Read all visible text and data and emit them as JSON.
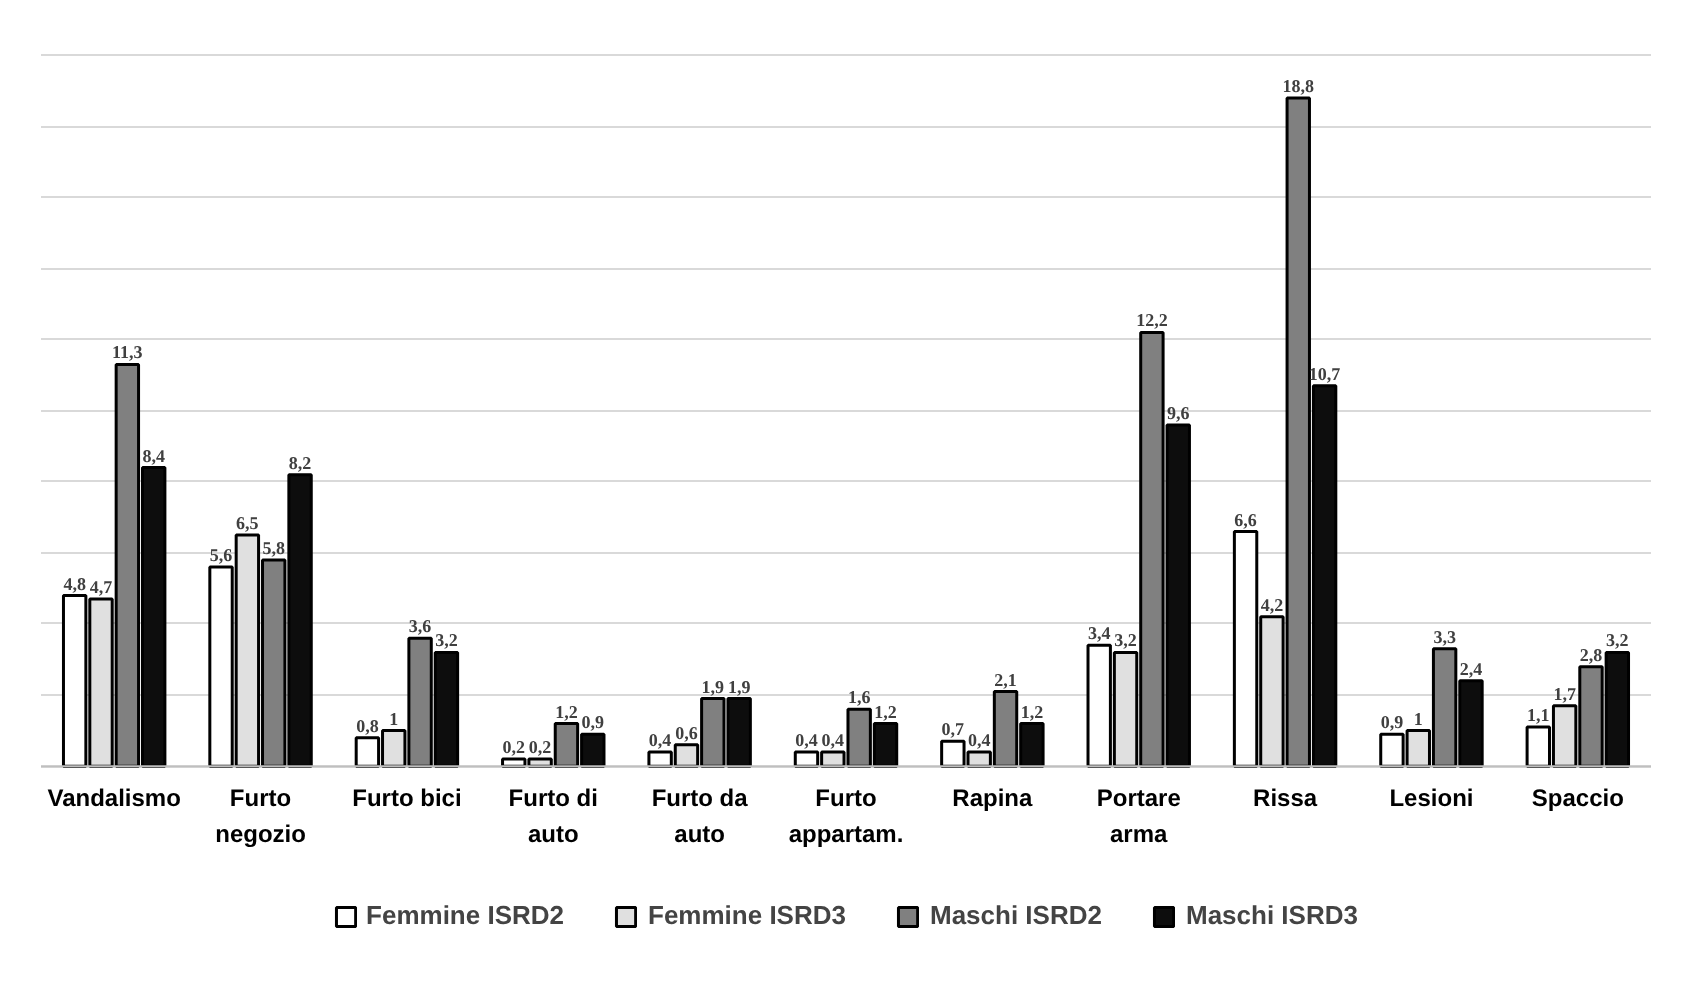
{
  "chart_data": {
    "type": "bar",
    "categories": [
      "Vandalismo",
      "Furto negozio",
      "Furto bici",
      "Furto di auto",
      "Furto da auto",
      "Furto appartam.",
      "Rapina",
      "Portare arma",
      "Rissa",
      "Lesioni",
      "Spaccio"
    ],
    "series": [
      {
        "name": "Femmine ISRD2",
        "color": "#ffffff",
        "values": [
          4.8,
          5.6,
          0.8,
          0.2,
          0.4,
          0.4,
          0.7,
          3.4,
          6.6,
          0.9,
          1.1
        ],
        "value_labels": [
          "4,8",
          "5,6",
          "0,8",
          "0,2",
          "0,4",
          "0,4",
          "0,7",
          "3,4",
          "6,6",
          "0,9",
          "1,1"
        ]
      },
      {
        "name": "Femmine ISRD3",
        "color": "#e0e0e0",
        "values": [
          4.7,
          6.5,
          1,
          0.2,
          0.6,
          0.4,
          0.4,
          3.2,
          4.2,
          1,
          1.7
        ],
        "value_labels": [
          "4,7",
          "6,5",
          "1",
          "0,2",
          "0,6",
          "0,4",
          "0,4",
          "3,2",
          "4,2",
          "1",
          "1,7"
        ]
      },
      {
        "name": "Maschi ISRD2",
        "color": "#808080",
        "values": [
          11.3,
          5.8,
          3.6,
          1.2,
          1.9,
          1.6,
          2.1,
          12.2,
          18.8,
          3.3,
          2.8
        ],
        "value_labels": [
          "11,3",
          "5,8",
          "3,6",
          "1,2",
          "1,9",
          "1,6",
          "2,1",
          "12,2",
          "18,8",
          "3,3",
          "2,8"
        ]
      },
      {
        "name": "Maschi ISRD3",
        "color": "#0d0d0d",
        "values": [
          8.4,
          8.2,
          3.2,
          0.9,
          1.9,
          1.2,
          1.2,
          9.6,
          10.7,
          2.4,
          3.2
        ],
        "value_labels": [
          "8,4",
          "8,2",
          "3,2",
          "0,9",
          "1,9",
          "1,2",
          "1,2",
          "9,6",
          "10,7",
          "2,4",
          "3,2"
        ]
      }
    ],
    "ylim": [
      0,
      20
    ],
    "yticks": [
      {
        "value": 0,
        "label": null
      },
      {
        "value": 2,
        "label": null
      },
      {
        "value": 4,
        "label": null
      },
      {
        "value": 6,
        "label": null
      },
      {
        "value": 8,
        "label": null
      },
      {
        "value": 10,
        "label": null
      },
      {
        "value": 12,
        "label": null
      },
      {
        "value": 14,
        "label": null
      },
      {
        "value": 16,
        "label": null
      },
      {
        "value": 18,
        "label": null
      },
      {
        "value": 20,
        "label": null
      }
    ],
    "tick_labels": "x",
    "grid": "y",
    "legend": "bottom"
  }
}
